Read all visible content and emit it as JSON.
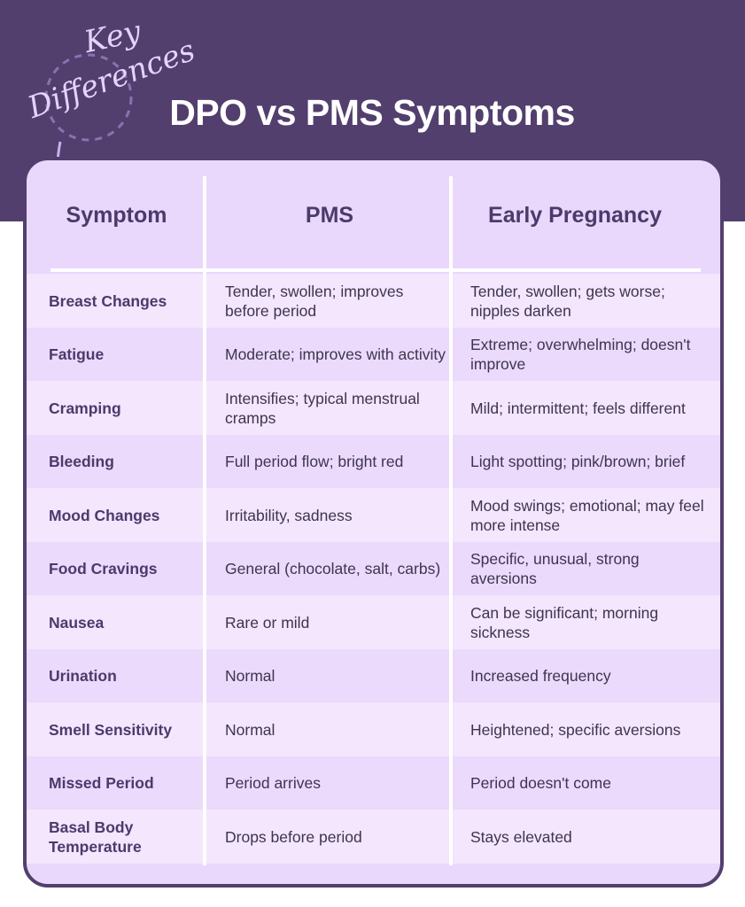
{
  "annotation": [
    "Key",
    "Differences"
  ],
  "title": "DPO vs PMS Symptoms",
  "table": {
    "header": [
      "Symptom",
      "PMS",
      "Early Pregnancy"
    ],
    "rows": [
      [
        "Breast Changes",
        "Tender, swollen; improves before period",
        "Tender, swollen; gets worse; nipples darken"
      ],
      [
        "Fatigue",
        "Moderate; improves with activity",
        "Extreme; overwhelming; doesn't improve"
      ],
      [
        "Cramping",
        "Intensifies; typical menstrual cramps",
        "Mild; intermittent; feels different"
      ],
      [
        "Bleeding",
        "Full period flow; bright red",
        "Light spotting; pink/brown; brief"
      ],
      [
        "Mood Changes",
        "Irritability, sadness",
        "Mood swings; emotional; may feel more intense"
      ],
      [
        "Food Cravings",
        "General (chocolate, salt, carbs)",
        "Specific, unusual, strong aversions"
      ],
      [
        "Nausea",
        "Rare or mild",
        "Can be significant; morning sickness"
      ],
      [
        "Urination",
        "Normal",
        "Increased frequency"
      ],
      [
        "Smell Sensitivity",
        "Normal",
        "Heightened; specific aversions"
      ],
      [
        "Missed Period",
        "Period arrives",
        "Period doesn't come"
      ],
      [
        "Basal Body Temperature",
        "Drops before period",
        "Stays elevated"
      ]
    ]
  }
}
